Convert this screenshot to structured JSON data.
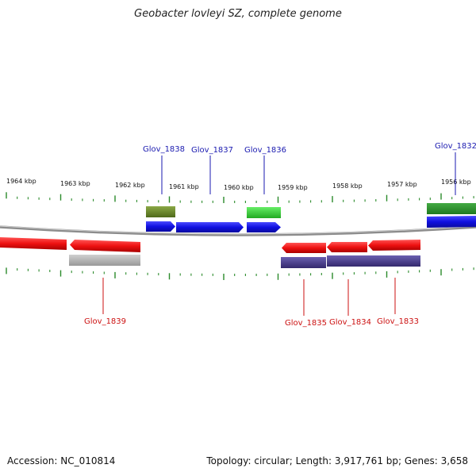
{
  "title": "Geobacter lovleyi SZ, complete genome",
  "footer": {
    "accession": "Accession: NC_010814",
    "topology": "Topology: circular; Length: 3,917,761 bp; Genes: 3,658"
  },
  "ruler": {
    "labels": [
      "1964 kbp",
      "1963 kbp",
      "1962 kbp",
      "1961 kbp",
      "1960 kbp",
      "1959 kbp",
      "1958 kbp",
      "1957 kbp",
      "1956 kbp"
    ]
  },
  "genes": [
    {
      "id": "Glov_1838",
      "color": "#1a1ab0",
      "strand": "+"
    },
    {
      "id": "Glov_1837",
      "color": "#1a1ab0",
      "strand": "+"
    },
    {
      "id": "Glov_1836",
      "color": "#1a1ab0",
      "strand": "+"
    },
    {
      "id": "Glov_1832",
      "color": "#1a1ab0",
      "strand": "+"
    },
    {
      "id": "Glov_1839",
      "color": "#cc1111",
      "strand": "-"
    },
    {
      "id": "Glov_1835",
      "color": "#cc1111",
      "strand": "-"
    },
    {
      "id": "Glov_1834",
      "color": "#cc1111",
      "strand": "-"
    },
    {
      "id": "Glov_1833",
      "color": "#cc1111",
      "strand": "-"
    }
  ],
  "colors": {
    "forward_cds": "#1010e0",
    "reverse_cds": "#ee1111",
    "genome_line": "#888888",
    "ticks": "#2a8a2a",
    "olive_feature": "#6b8a2a",
    "green_feature": "#33cc33",
    "gray_feature": "#aaaaaa",
    "navy_feature": "#4a3f8c"
  }
}
